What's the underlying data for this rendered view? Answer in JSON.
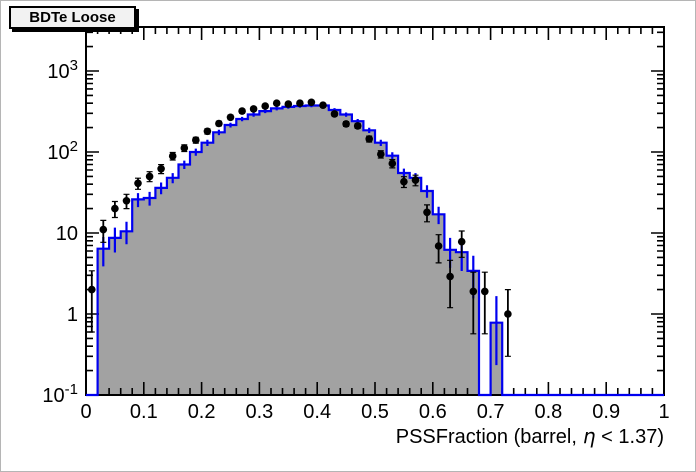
{
  "title_box": {
    "label": "BDTe Loose"
  },
  "colors": {
    "hist_fill": "#a2a2a2",
    "hist_line": "#0000f0",
    "marker": "#000000",
    "axis": "#000000",
    "title_box_bg": "#f2f2f2"
  },
  "axes": {
    "x": {
      "min": 0,
      "max": 1,
      "title": "PSSFraction (barrel,  η < 1.37)",
      "title_pre": "PSSFraction (barrel,",
      "title_eta": "η",
      "title_post": " < 1.37)",
      "ticks": [
        {
          "v": 0.0,
          "label": "0"
        },
        {
          "v": 0.1,
          "label": "0.1"
        },
        {
          "v": 0.2,
          "label": "0.2"
        },
        {
          "v": 0.3,
          "label": "0.3"
        },
        {
          "v": 0.4,
          "label": "0.4"
        },
        {
          "v": 0.5,
          "label": "0.5"
        },
        {
          "v": 0.6,
          "label": "0.6"
        },
        {
          "v": 0.7,
          "label": "0.7"
        },
        {
          "v": 0.8,
          "label": "0.8"
        },
        {
          "v": 0.9,
          "label": "0.9"
        },
        {
          "v": 1.0,
          "label": "1"
        }
      ],
      "minor_step": 0.02
    },
    "y": {
      "scale": "log",
      "min": 0.1,
      "max": 3490,
      "ticks": [
        {
          "v": 1000,
          "base": "10",
          "exp": "3"
        },
        {
          "v": 100,
          "base": "10",
          "exp": "2"
        },
        {
          "v": 10,
          "base": "10",
          "exp": ""
        },
        {
          "v": 1,
          "base": "1",
          "exp": ""
        },
        {
          "v": 0.1,
          "base": "10",
          "exp": "-1"
        }
      ]
    }
  },
  "chart_data": {
    "type": "bar",
    "subtype": "log-histogram-with-data-points",
    "title": "BDTe Loose",
    "xlabel": "PSSFraction (barrel,  η < 1.37)",
    "ylabel": "",
    "xlim": [
      0,
      1
    ],
    "ylim": [
      0.1,
      3490
    ],
    "bin_width": 0.02,
    "legend": "none",
    "grid": false,
    "bin_centers": [
      0.01,
      0.03,
      0.05,
      0.07,
      0.09,
      0.11,
      0.13,
      0.15,
      0.17,
      0.19,
      0.21,
      0.23,
      0.25,
      0.27,
      0.29,
      0.31,
      0.33,
      0.35,
      0.37,
      0.39,
      0.41,
      0.43,
      0.45,
      0.47,
      0.49,
      0.51,
      0.53,
      0.55,
      0.57,
      0.59,
      0.61,
      0.63,
      0.65,
      0.67,
      0.69,
      0.71,
      0.73
    ],
    "series": [
      {
        "name": "mc-filled-histogram",
        "style": "filled-steps",
        "fill": "#a2a2a2",
        "line": "#0000f0",
        "values": [
          0,
          6.4,
          8.7,
          10.5,
          26,
          27,
          36,
          48,
          70,
          100,
          130,
          175,
          215,
          255,
          290,
          320,
          345,
          360,
          370,
          375,
          375,
          330,
          290,
          240,
          185,
          130,
          90,
          55,
          48,
          33,
          17,
          6.2,
          5.8,
          3.4,
          0,
          0.78,
          0
        ]
      },
      {
        "name": "data-points",
        "style": "markers-with-errors",
        "color": "#000000",
        "marker": "filled-circle",
        "values": [
          2,
          11,
          20,
          25,
          41,
          50,
          62,
          89,
          112,
          140,
          180,
          225,
          268,
          320,
          340,
          368,
          400,
          390,
          400,
          410,
          378,
          295,
          222,
          210,
          145,
          94,
          72,
          43,
          45,
          18,
          6.9,
          2.9,
          7.8,
          1.9,
          1.9,
          null,
          1
        ]
      }
    ]
  }
}
